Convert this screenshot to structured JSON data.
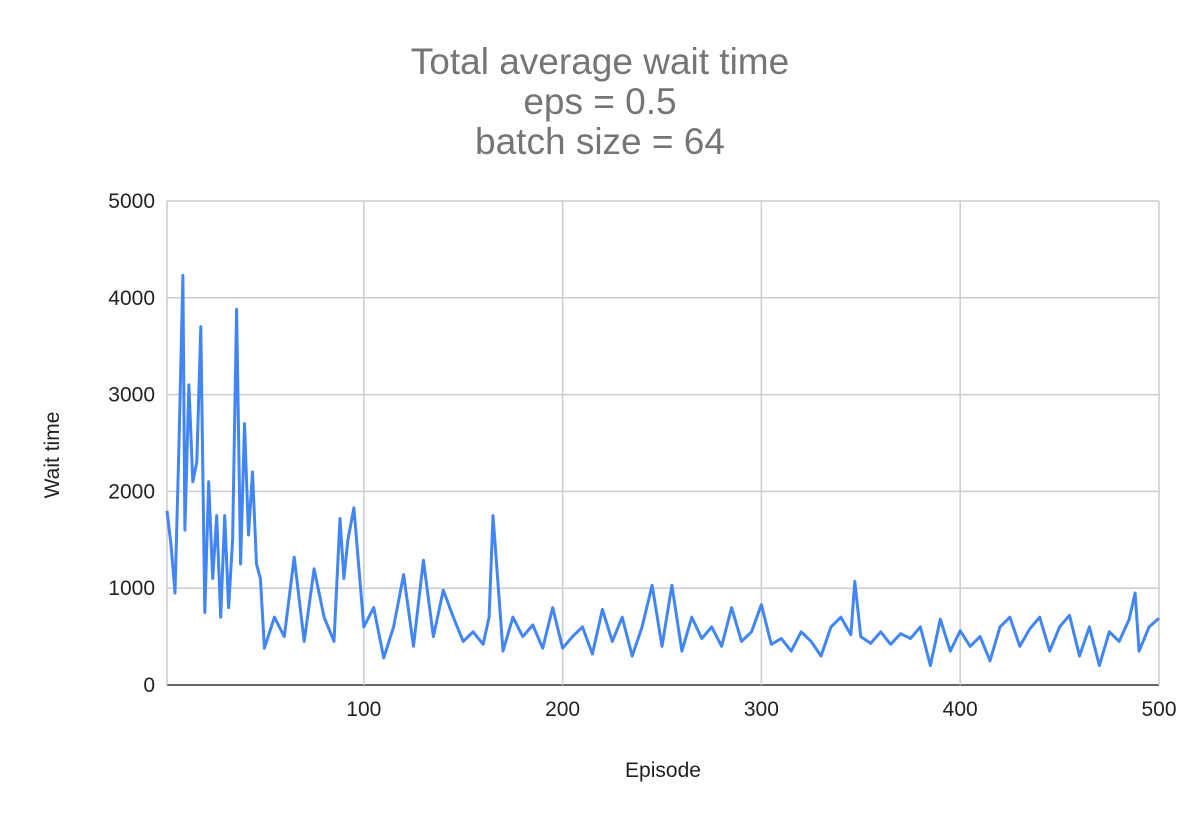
{
  "chart_data": {
    "type": "line",
    "title_lines": [
      "Total average wait time",
      "eps = 0.5",
      "batch size = 64"
    ],
    "xlabel": "Episode",
    "ylabel": "Wait time",
    "xlim": [
      1,
      500
    ],
    "ylim": [
      0,
      5000
    ],
    "x_ticks": [
      100,
      200,
      300,
      400,
      500
    ],
    "y_ticks": [
      0,
      1000,
      2000,
      3000,
      4000,
      5000
    ],
    "grid": true,
    "legend": "none",
    "series": [
      {
        "color": "#4285f4",
        "x": [
          1,
          3,
          5,
          7,
          9,
          10,
          12,
          14,
          16,
          18,
          20,
          22,
          24,
          26,
          28,
          30,
          32,
          34,
          36,
          38,
          40,
          42,
          44,
          46,
          48,
          50,
          55,
          60,
          65,
          70,
          75,
          80,
          85,
          88,
          90,
          92,
          95,
          100,
          105,
          110,
          115,
          120,
          125,
          130,
          135,
          140,
          145,
          150,
          155,
          160,
          163,
          165,
          170,
          175,
          180,
          185,
          190,
          195,
          200,
          205,
          210,
          215,
          220,
          225,
          230,
          235,
          240,
          245,
          250,
          255,
          260,
          265,
          270,
          275,
          280,
          285,
          290,
          295,
          300,
          305,
          310,
          315,
          320,
          325,
          330,
          335,
          340,
          345,
          347,
          350,
          355,
          360,
          365,
          370,
          375,
          380,
          385,
          390,
          395,
          400,
          405,
          410,
          415,
          420,
          425,
          430,
          435,
          440,
          445,
          450,
          455,
          460,
          465,
          470,
          475,
          480,
          485,
          488,
          490,
          495,
          500
        ],
        "values": [
          1800,
          1450,
          950,
          2450,
          4230,
          1600,
          3100,
          2100,
          2300,
          3700,
          750,
          2100,
          1100,
          1750,
          700,
          1750,
          800,
          1500,
          3880,
          1250,
          2700,
          1550,
          2200,
          1250,
          1100,
          380,
          700,
          500,
          1320,
          450,
          1200,
          700,
          450,
          1720,
          1100,
          1500,
          1830,
          600,
          800,
          280,
          600,
          1140,
          400,
          1290,
          500,
          980,
          700,
          450,
          550,
          420,
          700,
          1750,
          350,
          700,
          500,
          620,
          380,
          800,
          380,
          500,
          600,
          320,
          780,
          450,
          700,
          300,
          600,
          1030,
          400,
          1030,
          350,
          700,
          480,
          600,
          400,
          800,
          450,
          550,
          830,
          420,
          480,
          350,
          550,
          450,
          300,
          600,
          700,
          520,
          1070,
          500,
          430,
          550,
          420,
          530,
          480,
          600,
          200,
          680,
          350,
          560,
          400,
          500,
          250,
          600,
          700,
          400,
          580,
          700,
          350,
          600,
          720,
          300,
          600,
          200,
          550,
          450,
          680,
          950,
          350,
          600,
          690
        ]
      }
    ]
  }
}
